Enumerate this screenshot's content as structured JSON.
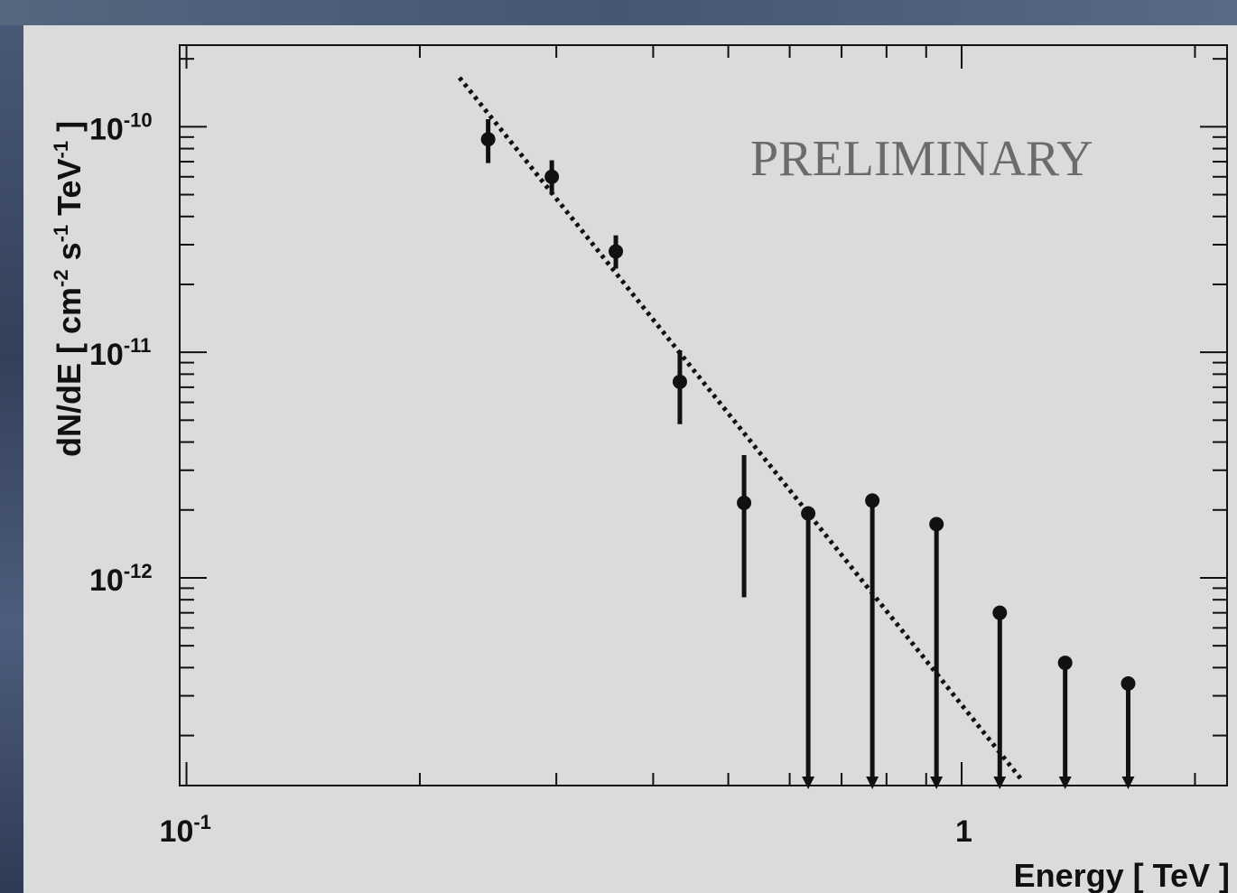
{
  "chart_data": {
    "type": "scatter",
    "title": "",
    "xlabel": "Energy [ TeV ]",
    "ylabel": {
      "parts": [
        "dN/dE  [ cm",
        "-2",
        " s",
        "-1",
        " TeV",
        "-1",
        " ]"
      ]
    },
    "x_scale": "log",
    "y_scale": "log",
    "xlim": [
      0.098,
      2.2
    ],
    "ylim": [
      1.2e-13,
      2.3e-10
    ],
    "x_ticks": [
      {
        "value": 0.1,
        "base": "10",
        "exp": "-1"
      },
      {
        "value": 1,
        "base": "1",
        "exp": ""
      }
    ],
    "y_ticks": [
      {
        "value": 1e-10,
        "base": "10",
        "exp": "-10"
      },
      {
        "value": 1e-11,
        "base": "10",
        "exp": "-11"
      },
      {
        "value": 1e-12,
        "base": "10",
        "exp": "-12"
      }
    ],
    "annotation": "PRELIMINARY",
    "grid": false,
    "points": [
      {
        "x": 0.245,
        "y": 8.8e-11,
        "ylow": 6.9e-11,
        "yhigh": 1.08e-10,
        "upper_limit": false
      },
      {
        "x": 0.296,
        "y": 6e-11,
        "ylow": 5e-11,
        "yhigh": 7.1e-11,
        "upper_limit": false
      },
      {
        "x": 0.358,
        "y": 2.8e-11,
        "ylow": 2.35e-11,
        "yhigh": 3.3e-11,
        "upper_limit": false
      },
      {
        "x": 0.433,
        "y": 7.4e-12,
        "ylow": 4.8e-12,
        "yhigh": 1.02e-11,
        "upper_limit": false
      },
      {
        "x": 0.524,
        "y": 2.15e-12,
        "ylow": 8.2e-13,
        "yhigh": 3.5e-12,
        "upper_limit": false
      },
      {
        "x": 0.634,
        "y": 1.93e-12,
        "upper_limit": true
      },
      {
        "x": 0.767,
        "y": 2.2e-12,
        "upper_limit": true
      },
      {
        "x": 0.928,
        "y": 1.73e-12,
        "upper_limit": true
      },
      {
        "x": 1.12,
        "y": 7e-13,
        "upper_limit": true
      },
      {
        "x": 1.36,
        "y": 4.2e-13,
        "upper_limit": true
      },
      {
        "x": 1.64,
        "y": 3.4e-13,
        "upper_limit": true
      }
    ],
    "fit_line": {
      "style": "dotted",
      "x": [
        0.225,
        1.2
      ],
      "y": [
        1.65e-10,
        1.25e-13
      ]
    }
  }
}
